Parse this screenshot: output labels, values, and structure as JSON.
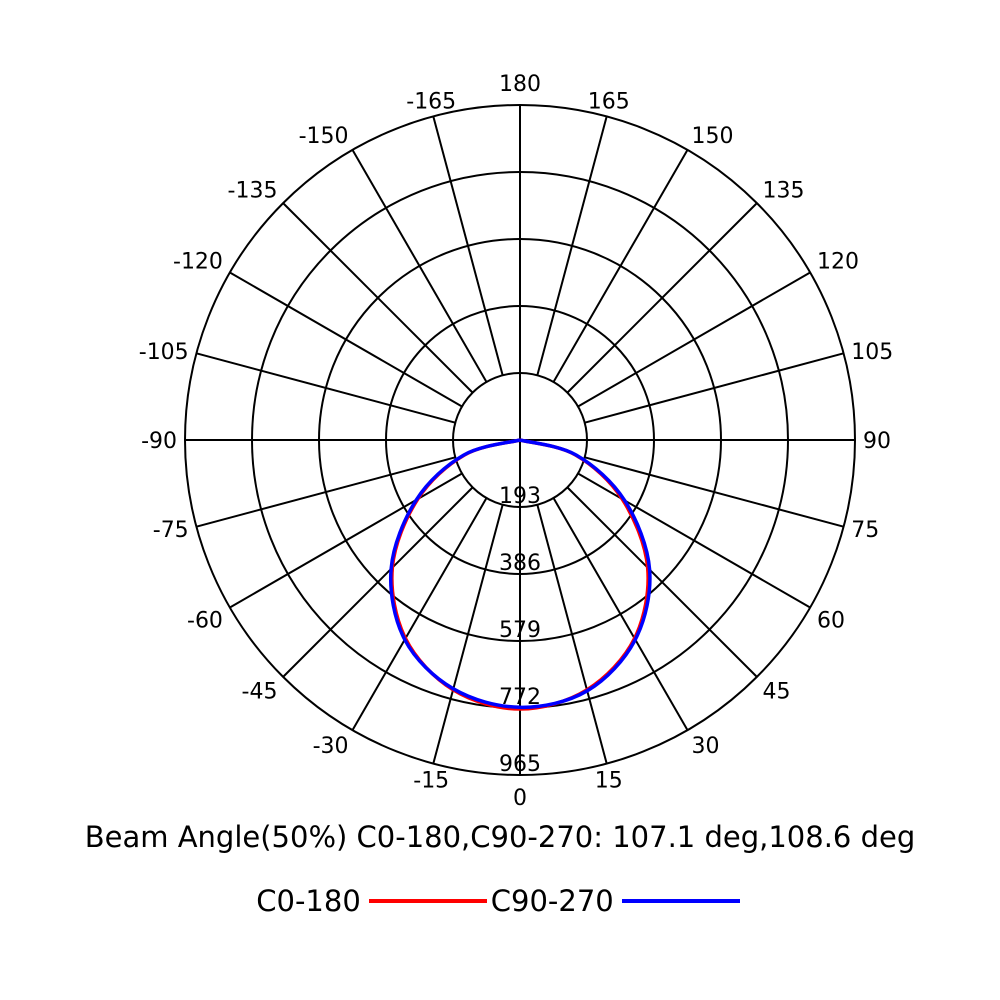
{
  "chart_data": {
    "type": "polar-line",
    "angle_ticks": [
      180,
      165,
      150,
      135,
      120,
      105,
      90,
      75,
      60,
      45,
      30,
      15,
      0,
      -15,
      -30,
      -45,
      -60,
      -75,
      -90,
      -105,
      -120,
      -135,
      -150,
      -165
    ],
    "angle_labels": [
      "180",
      "165",
      "150",
      "135",
      "120",
      "105",
      "90",
      "75",
      "60",
      "45",
      "30",
      "15",
      "0",
      "-15",
      "-30",
      "-45",
      "-60",
      "-75",
      "-90",
      "-105",
      "-120",
      "-135",
      "-150",
      "-165"
    ],
    "radial_ticks": [
      193,
      386,
      579,
      772,
      965
    ],
    "radial_labels": [
      "193",
      "386",
      "579",
      "772",
      "965"
    ],
    "rmax": 965,
    "series": [
      {
        "name": "C0-180",
        "color": "#ff0000",
        "angles": [
          -90,
          -75,
          -60,
          -45,
          -30,
          -15,
          0,
          15,
          30,
          45,
          60,
          75,
          90
        ],
        "values": [
          0,
          165,
          340,
          520,
          660,
          745,
          775,
          745,
          660,
          520,
          340,
          165,
          0
        ]
      },
      {
        "name": "C90-270",
        "color": "#0000ff",
        "angles": [
          -90,
          -75,
          -60,
          -45,
          -30,
          -15,
          0,
          15,
          30,
          45,
          60,
          75,
          90
        ],
        "values": [
          0,
          168,
          345,
          525,
          664,
          742,
          770,
          748,
          664,
          528,
          348,
          168,
          0
        ]
      }
    ],
    "caption": "Beam Angle(50%) C0-180,C90-270: 107.1 deg,108.6 deg",
    "legend_position": "bottom-center"
  }
}
